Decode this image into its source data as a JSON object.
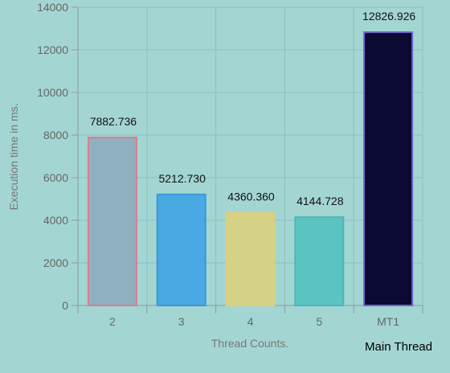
{
  "chart_data": {
    "type": "bar",
    "categories": [
      "2",
      "3",
      "4",
      "5",
      "MT1"
    ],
    "values": [
      7882.736,
      5212.73,
      4360.36,
      4144.728,
      12826.926
    ],
    "value_labels": [
      "7882.736",
      "5212.730",
      "4360.360",
      "4144.728",
      "12826.926"
    ],
    "xlabel": "Thread Counts.",
    "ylabel": "Execution time in ms.",
    "ylim": [
      0,
      14000
    ],
    "y_ticks": [
      0,
      2000,
      4000,
      6000,
      8000,
      10000,
      12000,
      14000
    ],
    "grid": true,
    "bar_fill_colors": [
      "#8fb0c0",
      "#4aa9e3",
      "#d6d285",
      "#5bc3c1",
      "#0a0a33"
    ],
    "bar_border_colors": [
      "#e07a8a",
      "#3a9ad6",
      "#dccf80",
      "#4fb5b5",
      "#6f64c8"
    ],
    "background_color": "#a3d6d3",
    "grid_color": "#8bbfbd",
    "annotation": "Main Thread"
  }
}
